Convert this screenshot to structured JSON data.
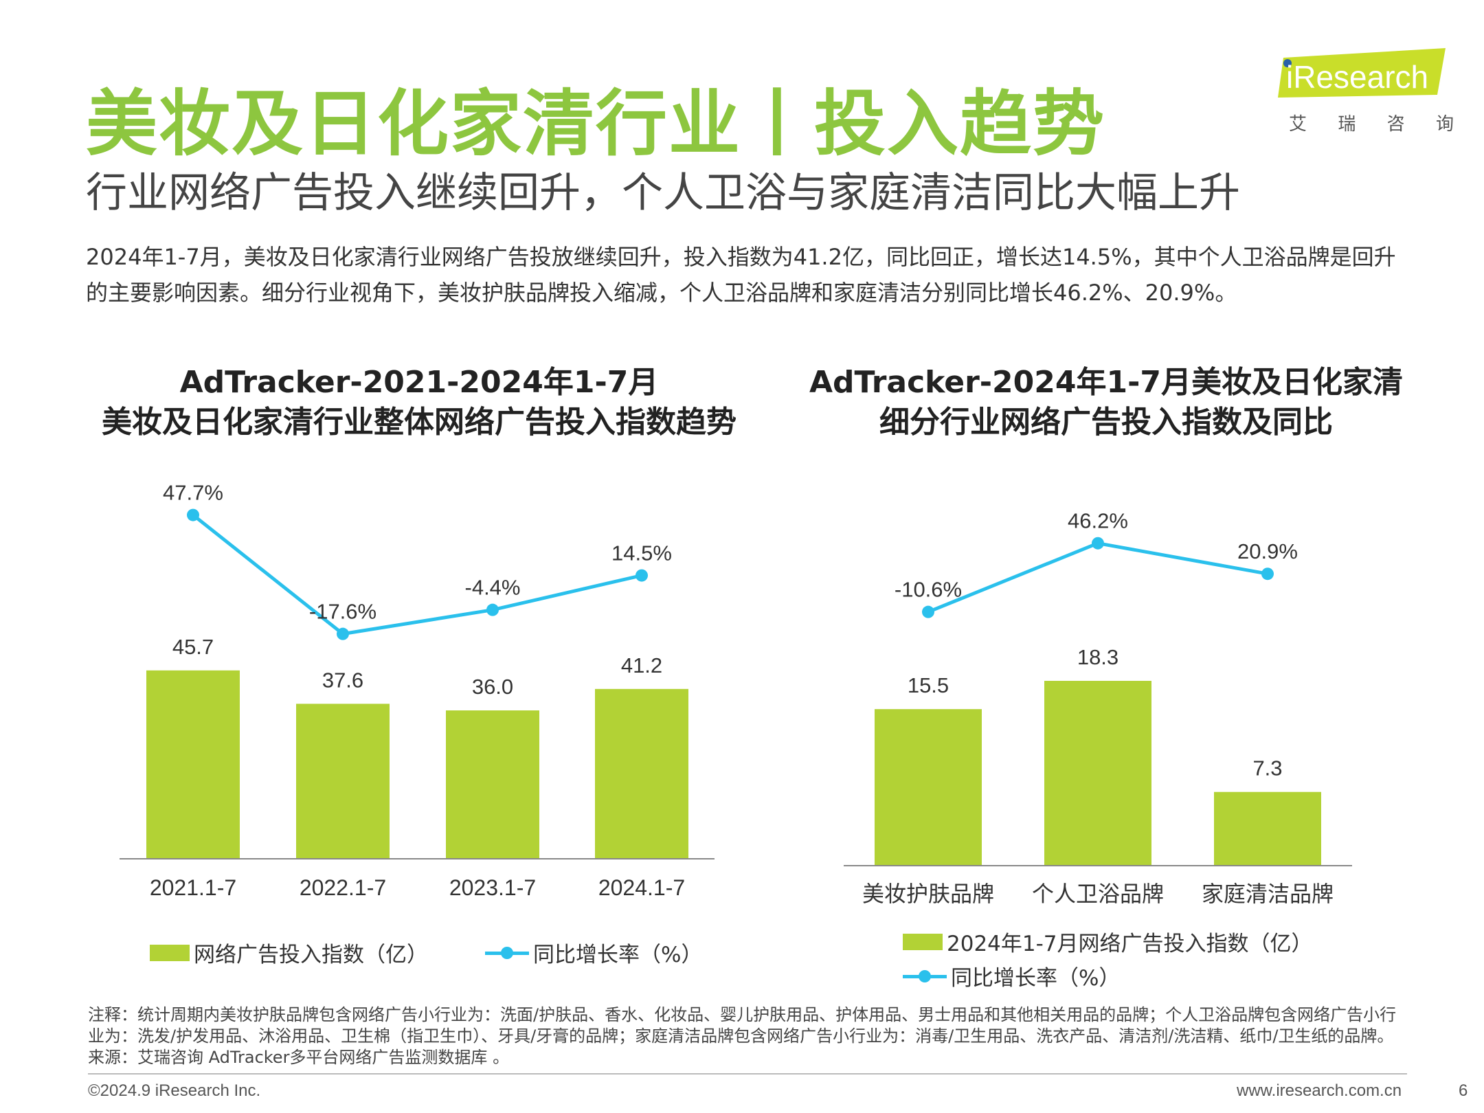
{
  "header": {
    "title": "美妆及日化家清行业丨投入趋势",
    "subtitle": "行业网络广告投入继续回升，个人卫浴与家庭清洁同比大幅上升",
    "summary": "2024年1-7月，美妆及日化家清行业网络广告投放继续回升，投入指数为41.2亿，同比回正，增长达14.5%，其中个人卫浴品牌是回升的主要影响因素。细分行业视角下，美妆护肤品牌投入缩减，个人卫浴品牌和家庭清洁分别同比增长46.2%、20.9%。"
  },
  "logo": {
    "text": "iResearch",
    "cn_chars": [
      "艾",
      "瑞",
      "咨",
      "询"
    ],
    "colors": {
      "box": "#c9de2a",
      "dot": "#2a5fa8"
    }
  },
  "chart_data": [
    {
      "type": "bar",
      "title_lines": [
        "AdTracker-2021-2024年1-7月",
        "美妆及日化家清行业整体网络广告投入指数趋势"
      ],
      "categories": [
        "2021.1-7",
        "2022.1-7",
        "2023.1-7",
        "2024.1-7"
      ],
      "series": [
        {
          "name": "网络广告投入指数（亿）",
          "kind": "bar",
          "color": "#b2d235",
          "values": [
            45.7,
            37.6,
            36.0,
            41.2
          ]
        },
        {
          "name": "同比增长率（%）",
          "kind": "line",
          "color": "#2ac0ec",
          "values": [
            47.7,
            -17.6,
            -4.4,
            14.5
          ]
        }
      ],
      "bar_labels": [
        "45.7",
        "37.6",
        "36.0",
        "41.2"
      ],
      "line_labels": [
        "47.7%",
        "-17.6%",
        "-4.4%",
        "14.5%"
      ],
      "legend": [
        "网络广告投入指数（亿）",
        "同比增长率（%）"
      ],
      "legend_position": "bottom"
    },
    {
      "type": "bar",
      "title_lines": [
        "AdTracker-2024年1-7月美妆及日化家清",
        "细分行业网络广告投入指数及同比"
      ],
      "categories": [
        "美妆护肤品牌",
        "个人卫浴品牌",
        "家庭清洁品牌"
      ],
      "series": [
        {
          "name": "2024年1-7月网络广告投入指数（亿）",
          "kind": "bar",
          "color": "#b2d235",
          "values": [
            15.5,
            18.3,
            7.3
          ]
        },
        {
          "name": "同比增长率（%）",
          "kind": "line",
          "color": "#2ac0ec",
          "values": [
            -10.6,
            46.2,
            20.9
          ]
        }
      ],
      "bar_labels": [
        "15.5",
        "18.3",
        "7.3"
      ],
      "line_labels": [
        "-10.6%",
        "46.2%",
        "20.9%"
      ],
      "legend": [
        "2024年1-7月网络广告投入指数（亿）",
        "同比增长率（%）"
      ],
      "legend_position": "bottom"
    }
  ],
  "notes": {
    "line1": "注释：统计周期内美妆护肤品牌包含网络广告小行业为：洗面/护肤品、香水、化妆品、婴儿护肤用品、护体用品、男士用品和其他相关用品的品牌；个人卫浴品牌包含网络广告小行",
    "line2": "业为：洗发/护发用品、沐浴用品、卫生棉（指卫生巾）、牙具/牙膏的品牌；家庭清洁品牌包含网络广告小行业为：消毒/卫生用品、洗衣产品、清洁剂/洗洁精、纸巾/卫生纸的品牌。",
    "line3": "来源：艾瑞咨询 AdTracker多平台网络广告监测数据库 。"
  },
  "footer": {
    "copyright": "©2024.9 iResearch Inc.",
    "website": "www.iresearch.com.cn",
    "page": "6"
  }
}
